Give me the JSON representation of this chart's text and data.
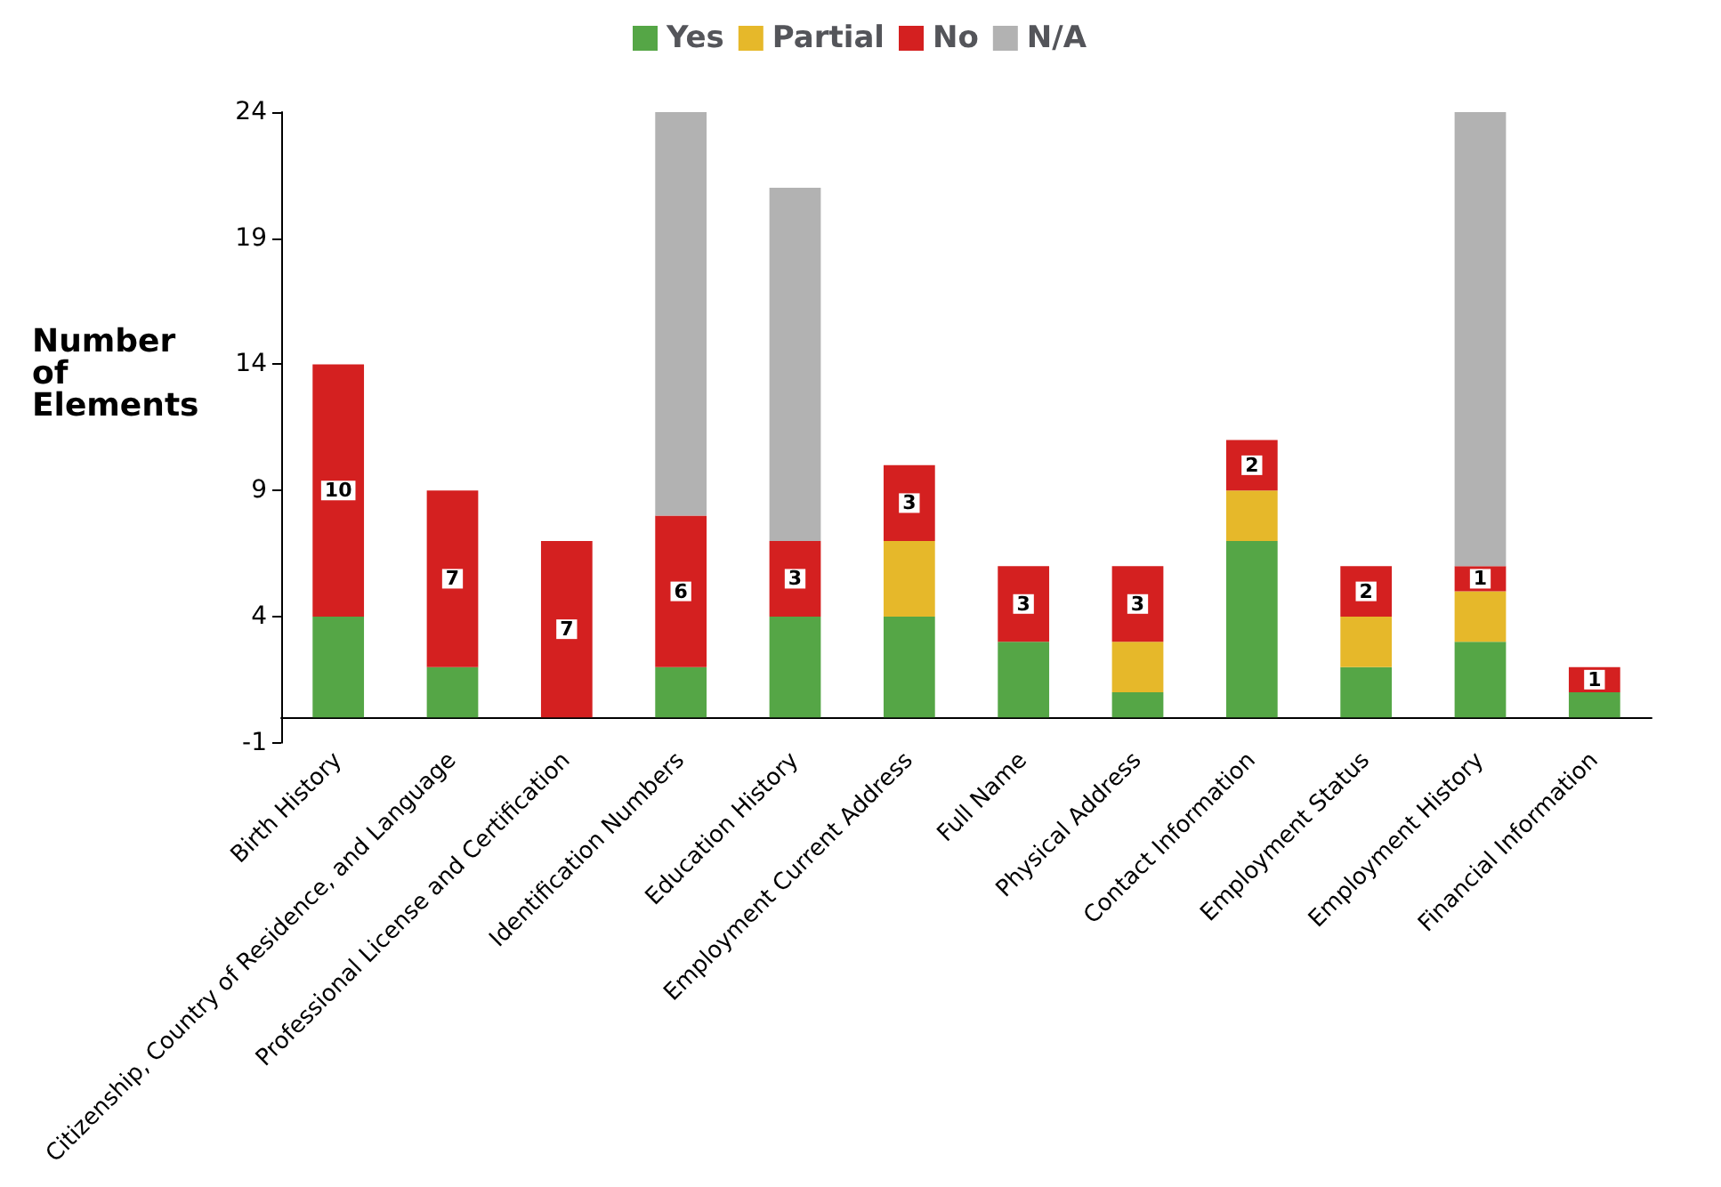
{
  "chart_data": {
    "type": "bar",
    "stacked": true,
    "ylabel": "Number of Elements",
    "legend": "top",
    "categories": [
      "Birth History",
      "Citizenship, Country of Residence, and Language",
      "Professional License and Certification",
      "Identification Numbers",
      "Education History",
      "Employment Current Address",
      "Full Name",
      "Physical Address",
      "Contact Information",
      "Employment Status",
      "Employment History",
      "Financial Information"
    ],
    "series": [
      {
        "name": "Yes",
        "color": "#55a646",
        "values": [
          4,
          2,
          0,
          2,
          4,
          4,
          3,
          1,
          7,
          2,
          3,
          1
        ]
      },
      {
        "name": "Partial",
        "color": "#e6b82a",
        "values": [
          0,
          0,
          0,
          0,
          0,
          3,
          0,
          2,
          2,
          2,
          2,
          0
        ]
      },
      {
        "name": "No",
        "color": "#d42020",
        "values": [
          10,
          7,
          7,
          6,
          3,
          3,
          3,
          3,
          2,
          2,
          1,
          1
        ],
        "value_labels": [
          "10",
          "7",
          "7",
          "6",
          "3",
          "3",
          "3",
          "3",
          "2",
          "2",
          "1",
          "1"
        ]
      },
      {
        "name": "N/A",
        "color": "#b2b2b2",
        "values": [
          0,
          0,
          0,
          16,
          14,
          0,
          0,
          0,
          0,
          0,
          18,
          0
        ]
      }
    ],
    "ylim": [
      -1,
      24
    ],
    "yticks": [
      -1,
      4,
      9,
      14,
      19,
      24
    ],
    "grid": false
  }
}
